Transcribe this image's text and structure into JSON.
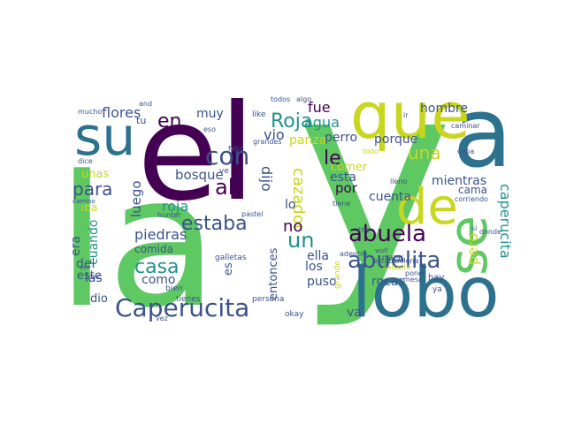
{
  "palette": {
    "purple": "#440154",
    "indigo": "#3b528b",
    "teal": "#21918c",
    "green": "#5ec962",
    "yellow": "#c8d620",
    "darkteal": "#2c728e",
    "lime": "#7ad151",
    "navy": "#31446b"
  },
  "words": [
    {
      "id": "y",
      "text": "y",
      "color": "green"
    },
    {
      "id": "la",
      "text": "la",
      "color": "green"
    },
    {
      "id": "el",
      "text": "el",
      "color": "purple"
    },
    {
      "id": "a",
      "text": "a",
      "color": "darkteal"
    },
    {
      "id": "que",
      "text": "que",
      "color": "yellow"
    },
    {
      "id": "lobo",
      "text": "lobo",
      "color": "darkteal"
    },
    {
      "id": "su",
      "text": "su",
      "color": "darkteal"
    },
    {
      "id": "se",
      "text": "se",
      "color": "green"
    },
    {
      "id": "de",
      "text": "de",
      "color": "yellow"
    },
    {
      "id": "caperucita_big",
      "text": "Caperucita",
      "color": "indigo"
    },
    {
      "id": "abuelita",
      "text": "abuelita",
      "color": "indigo"
    },
    {
      "id": "abuela",
      "text": "abuela",
      "color": "purple"
    },
    {
      "id": "con",
      "text": "con",
      "color": "indigo"
    },
    {
      "id": "en",
      "text": "en",
      "color": "purple"
    },
    {
      "id": "un",
      "text": "un",
      "color": "teal"
    },
    {
      "id": "le",
      "text": "le",
      "color": "purple"
    },
    {
      "id": "una",
      "text": "una",
      "color": "yellow"
    },
    {
      "id": "casa",
      "text": "casa",
      "color": "teal"
    },
    {
      "id": "estaba",
      "text": "estaba",
      "color": "indigo"
    },
    {
      "id": "para",
      "text": "para",
      "color": "indigo"
    },
    {
      "id": "roja_y",
      "text": "Roja",
      "color": "teal"
    },
    {
      "id": "flores",
      "text": "flores",
      "color": "indigo"
    },
    {
      "id": "al",
      "text": "al",
      "color": "purple"
    },
    {
      "id": "roja_small",
      "text": "roja",
      "color": "teal"
    },
    {
      "id": "caperucita_v",
      "text": "caperucita",
      "color": "teal"
    },
    {
      "id": "cazador",
      "text": "cazador",
      "color": "yellow"
    },
    {
      "id": "pero",
      "text": "pero",
      "color": "yellow"
    },
    {
      "id": "dijo",
      "text": "dijo",
      "color": "indigo"
    },
    {
      "id": "fue",
      "text": "fue",
      "color": "purple"
    },
    {
      "id": "agua",
      "text": "agua",
      "color": "teal"
    },
    {
      "id": "vio",
      "text": "vio",
      "color": "indigo"
    },
    {
      "id": "panza",
      "text": "panza",
      "color": "yellow"
    },
    {
      "id": "perro",
      "text": "perro",
      "color": "indigo"
    },
    {
      "id": "porque",
      "text": "porque",
      "color": "indigo"
    },
    {
      "id": "comer",
      "text": "comer",
      "color": "yellow"
    },
    {
      "id": "hombre",
      "text": "hombre",
      "color": "indigo"
    },
    {
      "id": "cuenta",
      "text": "cuenta",
      "color": "indigo"
    },
    {
      "id": "mientras",
      "text": "mientras",
      "color": "indigo"
    },
    {
      "id": "cama",
      "text": "cama",
      "color": "indigo"
    },
    {
      "id": "esta",
      "text": "esta",
      "color": "indigo"
    },
    {
      "id": "por",
      "text": "por",
      "color": "purple"
    },
    {
      "id": "bosque",
      "text": "bosque",
      "color": "indigo"
    },
    {
      "id": "luego",
      "text": "luego",
      "color": "indigo"
    },
    {
      "id": "no",
      "text": "no",
      "color": "purple"
    },
    {
      "id": "lo",
      "text": "lo",
      "color": "indigo"
    },
    {
      "id": "muy",
      "text": "muy",
      "color": "indigo"
    },
    {
      "id": "tu",
      "text": "tu",
      "color": "indigo"
    },
    {
      "id": "unas",
      "text": "unas",
      "color": "yellow"
    },
    {
      "id": "iba",
      "text": "iba",
      "color": "yellow"
    },
    {
      "id": "era",
      "text": "era",
      "color": "indigo"
    },
    {
      "id": "cuando",
      "text": "cuando",
      "color": "teal"
    },
    {
      "id": "las",
      "text": "las",
      "color": "indigo"
    },
    {
      "id": "del",
      "text": "del",
      "color": "indigo"
    },
    {
      "id": "este",
      "text": "este",
      "color": "indigo"
    },
    {
      "id": "dio",
      "text": "dio",
      "color": "indigo"
    },
    {
      "id": "comida",
      "text": "comida",
      "color": "indigo"
    },
    {
      "id": "piedras",
      "text": "piedras",
      "color": "indigo"
    },
    {
      "id": "como",
      "text": "como",
      "color": "indigo"
    },
    {
      "id": "es",
      "text": "es",
      "color": "indigo"
    },
    {
      "id": "entonces",
      "text": "entonces",
      "color": "indigo"
    },
    {
      "id": "ella",
      "text": "ella",
      "color": "indigo"
    },
    {
      "id": "los",
      "text": "los",
      "color": "indigo"
    },
    {
      "id": "puso",
      "text": "puso",
      "color": "indigo"
    },
    {
      "id": "rocas",
      "text": "rocas",
      "color": "indigo"
    },
    {
      "id": "va",
      "text": "va",
      "color": "indigo"
    },
    {
      "id": "hay",
      "text": "hay",
      "color": "indigo"
    },
    {
      "id": "okay",
      "text": "okay",
      "color": "indigo"
    },
    {
      "id": "bien",
      "text": "bien",
      "color": "indigo"
    },
    {
      "id": "tienes",
      "text": "tienes",
      "color": "indigo"
    },
    {
      "id": "persona",
      "text": "persona",
      "color": "indigo"
    },
    {
      "id": "galletas",
      "text": "galletas",
      "color": "indigo"
    },
    {
      "id": "mesa",
      "text": "mesa",
      "color": "indigo"
    },
    {
      "id": "poner",
      "text": "poner",
      "color": "indigo"
    },
    {
      "id": "matar",
      "text": "matar",
      "color": "indigo"
    },
    {
      "id": "estabanllena",
      "text": "estabanllena",
      "color": "indigo"
    },
    {
      "id": "adentro",
      "text": "adentro",
      "color": "indigo"
    },
    {
      "id": "hunter",
      "text": "hunter",
      "color": "indigo"
    },
    {
      "id": "pastel",
      "text": "pastel",
      "color": "indigo"
    },
    {
      "id": "todos",
      "text": "todos",
      "color": "indigo"
    },
    {
      "id": "algo",
      "text": "algo",
      "color": "indigo"
    },
    {
      "id": "mucho",
      "text": "mucho",
      "color": "indigo"
    },
    {
      "id": "dice",
      "text": "dice",
      "color": "indigo"
    },
    {
      "id": "camino",
      "text": "camino",
      "color": "indigo"
    },
    {
      "id": "caminar",
      "text": "caminar",
      "color": "indigo"
    },
    {
      "id": "like",
      "text": "like",
      "color": "indigo"
    },
    {
      "id": "feliz",
      "text": "feliz",
      "color": "indigo"
    },
    {
      "id": "grandes",
      "text": "grandes",
      "color": "indigo"
    },
    {
      "id": "the",
      "text": "the",
      "color": "indigo"
    },
    {
      "id": "lleno",
      "text": "lleno",
      "color": "indigo"
    },
    {
      "id": "wolf",
      "text": "wolf",
      "color": "indigo"
    },
    {
      "id": "ir",
      "text": "ir",
      "color": "indigo"
    },
    {
      "id": "si",
      "text": "si",
      "color": "indigo"
    },
    {
      "id": "ve",
      "text": "ve",
      "color": "indigo"
    },
    {
      "id": "eso",
      "text": "eso",
      "color": "indigo"
    },
    {
      "id": "ver",
      "text": "ver",
      "color": "indigo"
    },
    {
      "id": "vez",
      "text": "vez",
      "color": "indigo"
    },
    {
      "id": "and",
      "text": "and",
      "color": "indigo"
    },
    {
      "id": "todo",
      "text": "todo",
      "color": "yellow"
    },
    {
      "id": "ya",
      "text": "ya",
      "color": "indigo"
    },
    {
      "id": "tiene",
      "text": "tiene",
      "color": "indigo"
    },
    {
      "id": "donde",
      "text": "donde",
      "color": "indigo"
    },
    {
      "id": "capa",
      "text": "capa",
      "color": "indigo"
    },
    {
      "id": "corriendo",
      "text": "corriendo",
      "color": "indigo"
    },
    {
      "id": "canasta",
      "text": "canasta",
      "color": "yellow"
    },
    {
      "id": "grande",
      "text": "grande",
      "color": "yellow"
    }
  ]
}
